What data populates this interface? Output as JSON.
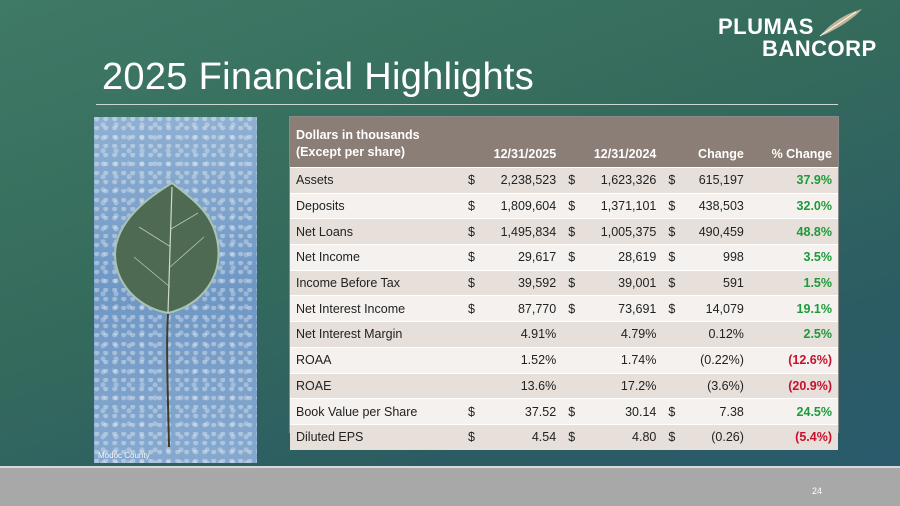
{
  "slide": {
    "title": "2025 Financial Highlights",
    "page_number": "24"
  },
  "logo": {
    "line1": "PLUMAS",
    "line2": "BANCORP"
  },
  "photo": {
    "caption": "Modoc County"
  },
  "table": {
    "header": {
      "col1_line1": "Dollars in thousands",
      "col1_line2": "(Except per share)",
      "col2": "12/31/2025",
      "col3": "12/31/2024",
      "col4": "Change",
      "col5": "% Change"
    },
    "rows": [
      {
        "label": "Assets",
        "cur1": "$",
        "v2025": "2,238,523",
        "cur2": "$",
        "v2024": "1,623,326",
        "cur3": "$",
        "change": "615,197",
        "pct": "37.9%",
        "pct_dir": "pos"
      },
      {
        "label": "Deposits",
        "cur1": "$",
        "v2025": "1,809,604",
        "cur2": "$",
        "v2024": "1,371,101",
        "cur3": "$",
        "change": "438,503",
        "pct": "32.0%",
        "pct_dir": "pos"
      },
      {
        "label": "Net Loans",
        "cur1": "$",
        "v2025": "1,495,834",
        "cur2": "$",
        "v2024": "1,005,375",
        "cur3": "$",
        "change": "490,459",
        "pct": "48.8%",
        "pct_dir": "pos"
      },
      {
        "label": "Net Income",
        "cur1": "$",
        "v2025": "29,617",
        "cur2": "$",
        "v2024": "28,619",
        "cur3": "$",
        "change": "998",
        "pct": "3.5%",
        "pct_dir": "pos"
      },
      {
        "label": "Income Before Tax",
        "cur1": "$",
        "v2025": "39,592",
        "cur2": "$",
        "v2024": "39,001",
        "cur3": "$",
        "change": "591",
        "pct": "1.5%",
        "pct_dir": "pos"
      },
      {
        "label": "Net Interest Income",
        "cur1": "$",
        "v2025": "87,770",
        "cur2": "$",
        "v2024": "73,691",
        "cur3": "$",
        "change": "14,079",
        "pct": "19.1%",
        "pct_dir": "pos"
      },
      {
        "label": "Net Interest Margin",
        "cur1": "",
        "v2025": "4.91%",
        "cur2": "",
        "v2024": "4.79%",
        "cur3": "",
        "change": "0.12%",
        "pct": "2.5%",
        "pct_dir": "pos"
      },
      {
        "label": "ROAA",
        "cur1": "",
        "v2025": "1.52%",
        "cur2": "",
        "v2024": "1.74%",
        "cur3": "",
        "change": "(0.22%)",
        "pct": "(12.6%)",
        "pct_dir": "neg"
      },
      {
        "label": "ROAE",
        "cur1": "",
        "v2025": "13.6%",
        "cur2": "",
        "v2024": "17.2%",
        "cur3": "",
        "change": "(3.6%)",
        "pct": "(20.9%)",
        "pct_dir": "neg"
      },
      {
        "label": "Book Value per Share",
        "cur1": "$",
        "v2025": "37.52",
        "cur2": "$",
        "v2024": "30.14",
        "cur3": "$",
        "change": "7.38",
        "pct": "24.5%",
        "pct_dir": "pos"
      },
      {
        "label": "Diluted EPS",
        "cur1": "$",
        "v2025": "4.54",
        "cur2": "$",
        "v2024": "4.80",
        "cur3": "$",
        "change": "(0.26)",
        "pct": "(5.4%)",
        "pct_dir": "neg"
      }
    ]
  },
  "colors": {
    "positive": "#1e9a3a",
    "negative": "#c8102e",
    "header_bg": "#8b7e76"
  }
}
